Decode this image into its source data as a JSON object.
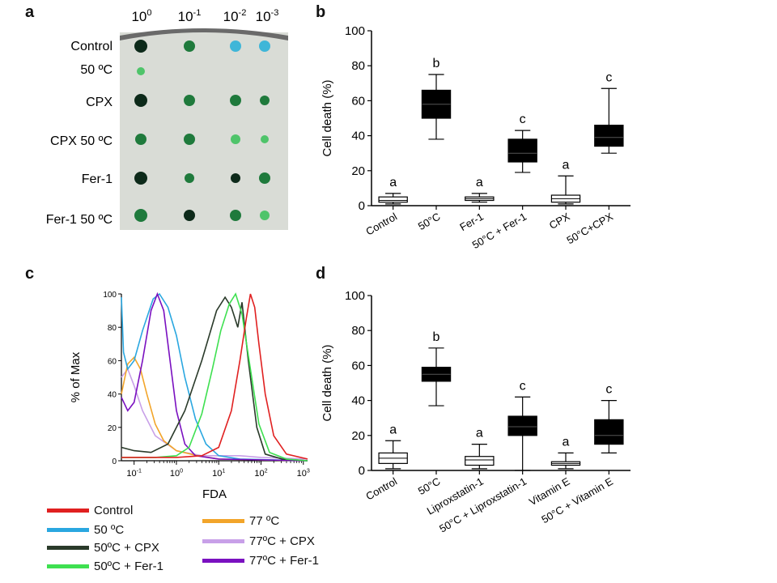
{
  "panels": {
    "a": "a",
    "b": "b",
    "c": "c",
    "d": "d"
  },
  "panel_a": {
    "dilutions": [
      {
        "base": "10",
        "exp": "0"
      },
      {
        "base": "10",
        "exp": "-1"
      },
      {
        "base": "10",
        "exp": "-2"
      },
      {
        "base": "10",
        "exp": "-3"
      }
    ],
    "rows": [
      "Control",
      "50 ºC",
      "CPX",
      "CPX 50 ºC",
      "Fer-1",
      "Fer-1 50 ºC"
    ],
    "spot_colors": {
      "dark": "#0d2a1a",
      "green": "#1f7a3c",
      "cyan": "#3fb6d8",
      "light_green": "#4fc46a"
    }
  },
  "chart_data": [
    {
      "id": "b",
      "type": "boxplot",
      "ylabel": "Cell death (%)",
      "ylim": [
        0,
        100
      ],
      "yticks": [
        "0",
        "20",
        "40",
        "60",
        "80",
        "100"
      ],
      "categories": [
        "Control",
        "50°C",
        "Fer-1",
        "50°C + Fer-1",
        "CPX",
        "50°C+CPX"
      ],
      "fills": [
        "white",
        "black",
        "white",
        "black",
        "white",
        "black"
      ],
      "boxes": [
        {
          "min": 1,
          "q1": 2,
          "median": 3,
          "q3": 5,
          "max": 7,
          "letter": "a"
        },
        {
          "min": 38,
          "q1": 50,
          "median": 58,
          "q3": 66,
          "max": 75,
          "letter": "b"
        },
        {
          "min": 2,
          "q1": 3,
          "median": 4,
          "q3": 5,
          "max": 7,
          "letter": "a"
        },
        {
          "min": 19,
          "q1": 25,
          "median": 30,
          "q3": 38,
          "max": 43,
          "letter": "c"
        },
        {
          "min": 1,
          "q1": 2,
          "median": 4,
          "q3": 6,
          "max": 17,
          "letter": "a"
        },
        {
          "min": 30,
          "q1": 34,
          "median": 39,
          "q3": 46,
          "max": 67,
          "letter": "c"
        }
      ]
    },
    {
      "id": "c",
      "type": "line",
      "xlabel": "FDA",
      "ylabel": "% of Max",
      "yticks": [
        "0",
        "20",
        "40",
        "60",
        "80",
        "100"
      ],
      "xticks": [
        {
          "base": "10",
          "exp": "-1"
        },
        {
          "base": "10",
          "exp": "0"
        },
        {
          "base": "10",
          "exp": "1"
        },
        {
          "base": "10",
          "exp": "2"
        },
        {
          "base": "10",
          "exp": "3"
        }
      ],
      "xlim_log10": [
        -1.3,
        3.1
      ],
      "ylim": [
        0,
        100
      ],
      "series": [
        {
          "name": "Control",
          "color": "#e02020",
          "points": [
            [
              -1.3,
              2
            ],
            [
              0,
              2
            ],
            [
              0.6,
              3
            ],
            [
              1.0,
              8
            ],
            [
              1.3,
              30
            ],
            [
              1.5,
              60
            ],
            [
              1.65,
              85
            ],
            [
              1.75,
              100
            ],
            [
              1.85,
              92
            ],
            [
              1.95,
              70
            ],
            [
              2.1,
              40
            ],
            [
              2.3,
              15
            ],
            [
              2.6,
              4
            ],
            [
              3.1,
              1
            ]
          ]
        },
        {
          "name": "50 ºC",
          "color": "#2aa7e0",
          "points": [
            [
              -1.3,
              98
            ],
            [
              -1.25,
              65
            ],
            [
              -1.15,
              55
            ],
            [
              -1.0,
              60
            ],
            [
              -0.8,
              78
            ],
            [
              -0.55,
              97
            ],
            [
              -0.4,
              100
            ],
            [
              -0.2,
              92
            ],
            [
              0,
              75
            ],
            [
              0.2,
              50
            ],
            [
              0.45,
              25
            ],
            [
              0.7,
              10
            ],
            [
              1.0,
              3
            ],
            [
              1.5,
              1
            ],
            [
              3.1,
              0
            ]
          ]
        },
        {
          "name": "50ºC + CPX",
          "color": "#2a3a2a",
          "points": [
            [
              -1.3,
              8
            ],
            [
              -1.0,
              6
            ],
            [
              -0.6,
              5
            ],
            [
              -0.2,
              10
            ],
            [
              0.2,
              30
            ],
            [
              0.6,
              60
            ],
            [
              0.95,
              90
            ],
            [
              1.15,
              98
            ],
            [
              1.3,
              92
            ],
            [
              1.45,
              80
            ],
            [
              1.55,
              95
            ],
            [
              1.7,
              60
            ],
            [
              1.9,
              20
            ],
            [
              2.1,
              4
            ],
            [
              2.5,
              1
            ],
            [
              3.1,
              0
            ]
          ]
        },
        {
          "name": "50ºC + Fer-1",
          "color": "#3ee050",
          "points": [
            [
              -1.3,
              2
            ],
            [
              -0.5,
              2
            ],
            [
              0,
              3
            ],
            [
              0.3,
              8
            ],
            [
              0.6,
              28
            ],
            [
              0.85,
              55
            ],
            [
              1.05,
              78
            ],
            [
              1.25,
              94
            ],
            [
              1.4,
              100
            ],
            [
              1.55,
              88
            ],
            [
              1.75,
              55
            ],
            [
              1.95,
              22
            ],
            [
              2.2,
              5
            ],
            [
              2.6,
              1
            ],
            [
              3.1,
              0
            ]
          ]
        },
        {
          "name": "77 ºC",
          "color": "#f2a52a",
          "points": [
            [
              -1.3,
              40
            ],
            [
              -1.15,
              58
            ],
            [
              -1.0,
              62
            ],
            [
              -0.85,
              55
            ],
            [
              -0.7,
              40
            ],
            [
              -0.5,
              22
            ],
            [
              -0.3,
              12
            ],
            [
              0,
              6
            ],
            [
              0.5,
              3
            ],
            [
              1.0,
              1
            ],
            [
              3.1,
              0
            ]
          ]
        },
        {
          "name": "77ºC + CPX",
          "color": "#c8a0e8",
          "points": [
            [
              -1.3,
              50
            ],
            [
              -1.15,
              55
            ],
            [
              -1.0,
              45
            ],
            [
              -0.8,
              30
            ],
            [
              -0.5,
              15
            ],
            [
              0,
              6
            ],
            [
              0.6,
              3
            ],
            [
              1.5,
              3
            ],
            [
              2.0,
              2
            ],
            [
              3.1,
              1
            ]
          ]
        },
        {
          "name": "77ºC + Fer-1",
          "color": "#7a10c0",
          "points": [
            [
              -1.3,
              38
            ],
            [
              -1.15,
              30
            ],
            [
              -1.0,
              35
            ],
            [
              -0.8,
              60
            ],
            [
              -0.6,
              90
            ],
            [
              -0.45,
              100
            ],
            [
              -0.3,
              90
            ],
            [
              -0.15,
              60
            ],
            [
              0,
              30
            ],
            [
              0.2,
              10
            ],
            [
              0.45,
              3
            ],
            [
              1.0,
              1
            ],
            [
              3.1,
              0
            ]
          ]
        }
      ]
    },
    {
      "id": "d",
      "type": "boxplot",
      "ylabel": "Cell death (%)",
      "ylim": [
        0,
        100
      ],
      "yticks": [
        "0",
        "20",
        "40",
        "60",
        "80",
        "100"
      ],
      "categories": [
        "Control",
        "50°C",
        "Liproxstatin-1",
        "50°C + Liproxstatin-1",
        "Vitamin E",
        "50°C + Vitamin E"
      ],
      "fills": [
        "white",
        "black",
        "white",
        "black",
        "white",
        "black"
      ],
      "boxes": [
        {
          "min": 1,
          "q1": 4,
          "median": 7,
          "q3": 10,
          "max": 17,
          "letter": "a"
        },
        {
          "min": 37,
          "q1": 51,
          "median": 55,
          "q3": 59,
          "max": 70,
          "letter": "b"
        },
        {
          "min": 1,
          "q1": 3,
          "median": 6,
          "q3": 8,
          "max": 15,
          "letter": "a"
        },
        {
          "min": 0,
          "q1": 20,
          "median": 25,
          "q3": 31,
          "max": 42,
          "letter": "c"
        },
        {
          "min": 1,
          "q1": 3,
          "median": 4,
          "q3": 5,
          "max": 10,
          "letter": "a"
        },
        {
          "min": 10,
          "q1": 15,
          "median": 20,
          "q3": 29,
          "max": 40,
          "letter": "c"
        }
      ]
    }
  ]
}
